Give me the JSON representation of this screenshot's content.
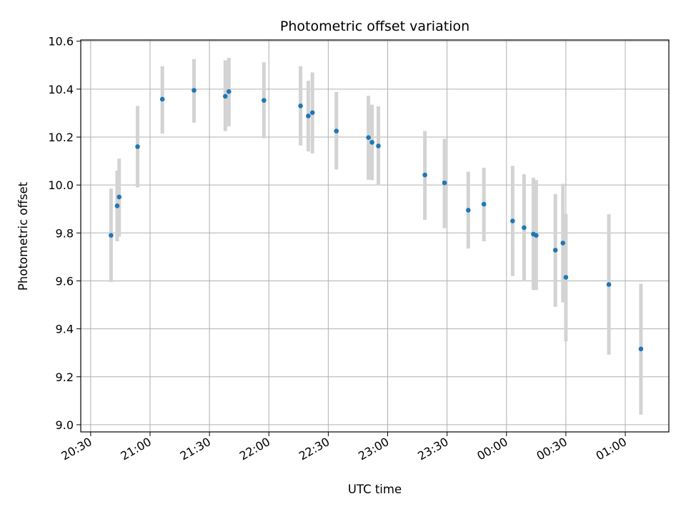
{
  "chart_data": {
    "type": "scatter",
    "title": "Photometric offset variation",
    "xlabel": "UTC time",
    "ylabel": "Photometric offset",
    "x_unit": "minutes after 20:30 UTC",
    "xlim": [
      -5,
      292
    ],
    "ylim": [
      8.97,
      10.605
    ],
    "x_ticks": [
      {
        "value": 0,
        "label": "20:30"
      },
      {
        "value": 30,
        "label": "21:00"
      },
      {
        "value": 60,
        "label": "21:30"
      },
      {
        "value": 90,
        "label": "22:00"
      },
      {
        "value": 120,
        "label": "22:30"
      },
      {
        "value": 150,
        "label": "23:00"
      },
      {
        "value": 180,
        "label": "23:30"
      },
      {
        "value": 210,
        "label": "00:00"
      },
      {
        "value": 240,
        "label": "00:30"
      },
      {
        "value": 270,
        "label": "01:00"
      }
    ],
    "y_ticks": [
      {
        "value": 9.0,
        "label": "9.0"
      },
      {
        "value": 9.2,
        "label": "9.2"
      },
      {
        "value": 9.4,
        "label": "9.4"
      },
      {
        "value": 9.6,
        "label": "9.6"
      },
      {
        "value": 9.8,
        "label": "9.8"
      },
      {
        "value": 10.0,
        "label": "10.0"
      },
      {
        "value": 10.2,
        "label": "10.2"
      },
      {
        "value": 10.4,
        "label": "10.4"
      },
      {
        "value": 10.6,
        "label": "10.6"
      }
    ],
    "grid": true,
    "point_color": "#1f77b4",
    "errorbar_color": "#d3d3d3",
    "points": [
      {
        "x": 10.3,
        "y": 9.79,
        "lo": 9.595,
        "hi": 9.985
      },
      {
        "x": 13.4,
        "y": 9.913,
        "lo": 9.765,
        "hi": 10.06
      },
      {
        "x": 14.4,
        "y": 9.95,
        "lo": 9.785,
        "hi": 10.11
      },
      {
        "x": 23.7,
        "y": 10.16,
        "lo": 9.99,
        "hi": 10.33
      },
      {
        "x": 36.2,
        "y": 10.358,
        "lo": 10.215,
        "hi": 10.495
      },
      {
        "x": 52.2,
        "y": 10.395,
        "lo": 10.26,
        "hi": 10.525
      },
      {
        "x": 68.0,
        "y": 10.37,
        "lo": 10.225,
        "hi": 10.52
      },
      {
        "x": 69.8,
        "y": 10.39,
        "lo": 10.245,
        "hi": 10.53
      },
      {
        "x": 87.5,
        "y": 10.353,
        "lo": 10.195,
        "hi": 10.512
      },
      {
        "x": 106.0,
        "y": 10.33,
        "lo": 10.165,
        "hi": 10.495
      },
      {
        "x": 109.9,
        "y": 10.288,
        "lo": 10.14,
        "hi": 10.435
      },
      {
        "x": 112.0,
        "y": 10.302,
        "lo": 10.132,
        "hi": 10.47
      },
      {
        "x": 124.1,
        "y": 10.225,
        "lo": 10.065,
        "hi": 10.388
      },
      {
        "x": 140.3,
        "y": 10.198,
        "lo": 10.022,
        "hi": 10.372
      },
      {
        "x": 142.1,
        "y": 10.178,
        "lo": 10.02,
        "hi": 10.335
      },
      {
        "x": 145.3,
        "y": 10.163,
        "lo": 9.998,
        "hi": 10.328
      },
      {
        "x": 168.8,
        "y": 10.042,
        "lo": 9.855,
        "hi": 10.225
      },
      {
        "x": 178.7,
        "y": 10.009,
        "lo": 9.82,
        "hi": 10.193
      },
      {
        "x": 190.7,
        "y": 9.895,
        "lo": 9.735,
        "hi": 10.055
      },
      {
        "x": 198.6,
        "y": 9.92,
        "lo": 9.765,
        "hi": 10.072
      },
      {
        "x": 213.1,
        "y": 9.85,
        "lo": 9.62,
        "hi": 10.08
      },
      {
        "x": 218.9,
        "y": 9.822,
        "lo": 9.598,
        "hi": 10.045
      },
      {
        "x": 223.6,
        "y": 9.795,
        "lo": 9.562,
        "hi": 10.03
      },
      {
        "x": 225.0,
        "y": 9.79,
        "lo": 9.562,
        "hi": 10.02
      },
      {
        "x": 234.7,
        "y": 9.728,
        "lo": 9.492,
        "hi": 9.962
      },
      {
        "x": 238.5,
        "y": 9.758,
        "lo": 9.51,
        "hi": 10.005
      },
      {
        "x": 240.0,
        "y": 9.615,
        "lo": 9.348,
        "hi": 9.88
      },
      {
        "x": 261.7,
        "y": 9.585,
        "lo": 9.292,
        "hi": 9.878
      },
      {
        "x": 277.9,
        "y": 9.316,
        "lo": 9.042,
        "hi": 9.588
      }
    ]
  }
}
